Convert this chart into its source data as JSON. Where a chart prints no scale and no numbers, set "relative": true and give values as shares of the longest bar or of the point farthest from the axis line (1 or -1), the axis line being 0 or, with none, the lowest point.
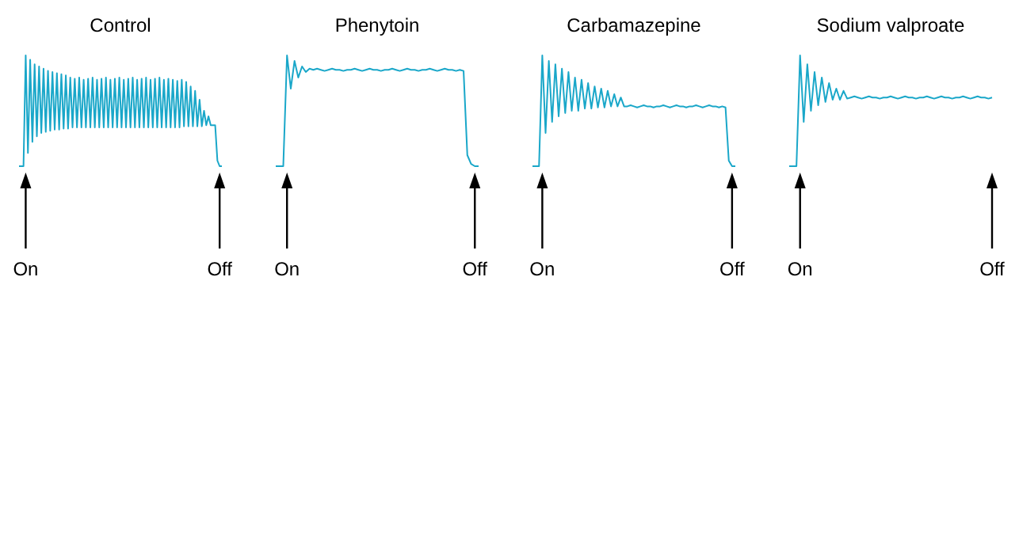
{
  "chart_data": [
    {
      "type": "line",
      "title": "Control",
      "relative": true,
      "color": "#1aa7c9",
      "annotations": [
        "On",
        "Off"
      ],
      "categories": [
        null,
        null,
        null,
        null,
        null,
        null,
        null,
        null,
        null,
        null,
        null,
        null,
        null,
        null,
        null,
        null,
        null,
        null,
        null,
        null,
        null,
        null,
        null,
        null,
        null,
        null,
        null,
        null,
        null,
        null,
        null,
        null,
        null,
        null,
        null,
        null,
        null,
        null,
        null,
        null,
        null,
        null,
        null,
        null,
        null,
        null,
        null,
        null,
        null,
        null,
        null,
        null,
        null,
        null,
        null,
        null,
        null,
        null,
        null,
        null,
        null,
        null,
        null,
        null,
        null,
        null,
        null,
        null,
        null,
        null,
        null,
        null,
        null,
        null,
        null,
        null,
        null,
        null,
        null,
        null,
        null,
        null,
        null,
        null,
        null,
        null,
        null,
        null,
        null,
        null,
        null,
        null
      ],
      "values": [
        0,
        0,
        0,
        1,
        0.12,
        0.96,
        0.22,
        0.92,
        0.27,
        0.9,
        0.3,
        0.88,
        0.31,
        0.86,
        0.32,
        0.85,
        0.33,
        0.84,
        0.33,
        0.83,
        0.34,
        0.82,
        0.34,
        0.8,
        0.35,
        0.79,
        0.35,
        0.8,
        0.35,
        0.78,
        0.35,
        0.79,
        0.35,
        0.8,
        0.35,
        0.78,
        0.35,
        0.79,
        0.35,
        0.8,
        0.35,
        0.78,
        0.35,
        0.79,
        0.35,
        0.8,
        0.35,
        0.78,
        0.35,
        0.79,
        0.35,
        0.8,
        0.35,
        0.78,
        0.35,
        0.79,
        0.35,
        0.8,
        0.35,
        0.78,
        0.35,
        0.79,
        0.35,
        0.8,
        0.35,
        0.78,
        0.35,
        0.79,
        0.35,
        0.78,
        0.35,
        0.77,
        0.35,
        0.78,
        0.36,
        0.76,
        0.36,
        0.72,
        0.36,
        0.68,
        0.36,
        0.6,
        0.36,
        0.5,
        0.37,
        0.45,
        0.37,
        0.37,
        0.37,
        0.05,
        0,
        0
      ]
    },
    {
      "type": "line",
      "title": "Phenytoin",
      "relative": true,
      "color": "#1aa7c9",
      "annotations": [
        "On",
        "Off"
      ],
      "categories": [
        null,
        null,
        null,
        null,
        null,
        null,
        null,
        null,
        null,
        null,
        null,
        null,
        null,
        null,
        null,
        null,
        null,
        null,
        null,
        null,
        null,
        null,
        null,
        null,
        null,
        null,
        null,
        null,
        null,
        null,
        null,
        null,
        null,
        null,
        null,
        null,
        null,
        null,
        null,
        null,
        null,
        null,
        null,
        null,
        null,
        null,
        null,
        null,
        null,
        null,
        null,
        null,
        null,
        null,
        null
      ],
      "values": [
        0,
        0,
        0,
        1,
        0.7,
        0.95,
        0.8,
        0.9,
        0.85,
        0.88,
        0.87,
        0.88,
        0.87,
        0.86,
        0.87,
        0.88,
        0.87,
        0.87,
        0.86,
        0.87,
        0.87,
        0.88,
        0.87,
        0.86,
        0.87,
        0.88,
        0.87,
        0.87,
        0.86,
        0.87,
        0.87,
        0.88,
        0.87,
        0.86,
        0.87,
        0.88,
        0.87,
        0.87,
        0.86,
        0.87,
        0.87,
        0.88,
        0.87,
        0.86,
        0.87,
        0.88,
        0.87,
        0.87,
        0.86,
        0.87,
        0.86,
        0.1,
        0.02,
        0,
        0
      ]
    },
    {
      "type": "line",
      "title": "Carbamazepine",
      "relative": true,
      "color": "#1aa7c9",
      "annotations": [
        "On",
        "Off"
      ],
      "categories": [
        null,
        null,
        null,
        null,
        null,
        null,
        null,
        null,
        null,
        null,
        null,
        null,
        null,
        null,
        null,
        null,
        null,
        null,
        null,
        null,
        null,
        null,
        null,
        null,
        null,
        null,
        null,
        null,
        null,
        null,
        null,
        null,
        null,
        null,
        null,
        null,
        null,
        null,
        null,
        null,
        null,
        null,
        null,
        null,
        null,
        null,
        null,
        null,
        null,
        null,
        null,
        null,
        null,
        null,
        null,
        null,
        null,
        null,
        null,
        null,
        null,
        null,
        null
      ],
      "values": [
        0,
        0,
        0,
        1,
        0.3,
        0.95,
        0.4,
        0.92,
        0.45,
        0.88,
        0.48,
        0.85,
        0.5,
        0.8,
        0.5,
        0.78,
        0.52,
        0.75,
        0.52,
        0.72,
        0.53,
        0.7,
        0.53,
        0.68,
        0.54,
        0.65,
        0.54,
        0.62,
        0.54,
        0.54,
        0.55,
        0.54,
        0.53,
        0.54,
        0.55,
        0.54,
        0.54,
        0.53,
        0.54,
        0.54,
        0.55,
        0.54,
        0.53,
        0.54,
        0.55,
        0.54,
        0.54,
        0.53,
        0.54,
        0.54,
        0.55,
        0.54,
        0.53,
        0.54,
        0.55,
        0.54,
        0.54,
        0.53,
        0.54,
        0.53,
        0.05,
        0,
        0
      ]
    },
    {
      "type": "line",
      "title": "Sodium valproate",
      "relative": true,
      "color": "#1aa7c9",
      "annotations": [
        "On",
        "Off"
      ],
      "categories": [
        null,
        null,
        null,
        null,
        null,
        null,
        null,
        null,
        null,
        null,
        null,
        null,
        null,
        null,
        null,
        null,
        null,
        null,
        null,
        null,
        null,
        null,
        null,
        null,
        null,
        null,
        null,
        null,
        null,
        null,
        null,
        null,
        null,
        null,
        null,
        null,
        null,
        null,
        null,
        null,
        null,
        null,
        null,
        null,
        null,
        null,
        null,
        null,
        null,
        null,
        null,
        null,
        null,
        null,
        null,
        null,
        null
      ],
      "values": [
        0,
        0,
        0,
        1,
        0.4,
        0.92,
        0.5,
        0.85,
        0.55,
        0.8,
        0.58,
        0.75,
        0.6,
        0.7,
        0.6,
        0.68,
        0.61,
        0.62,
        0.63,
        0.62,
        0.61,
        0.62,
        0.63,
        0.62,
        0.62,
        0.61,
        0.62,
        0.62,
        0.63,
        0.62,
        0.61,
        0.62,
        0.63,
        0.62,
        0.62,
        0.61,
        0.62,
        0.62,
        0.63,
        0.62,
        0.61,
        0.62,
        0.63,
        0.62,
        0.62,
        0.61,
        0.62,
        0.62,
        0.63,
        0.62,
        0.61,
        0.62,
        0.63,
        0.62,
        0.62,
        0.61,
        0.62
      ]
    }
  ]
}
